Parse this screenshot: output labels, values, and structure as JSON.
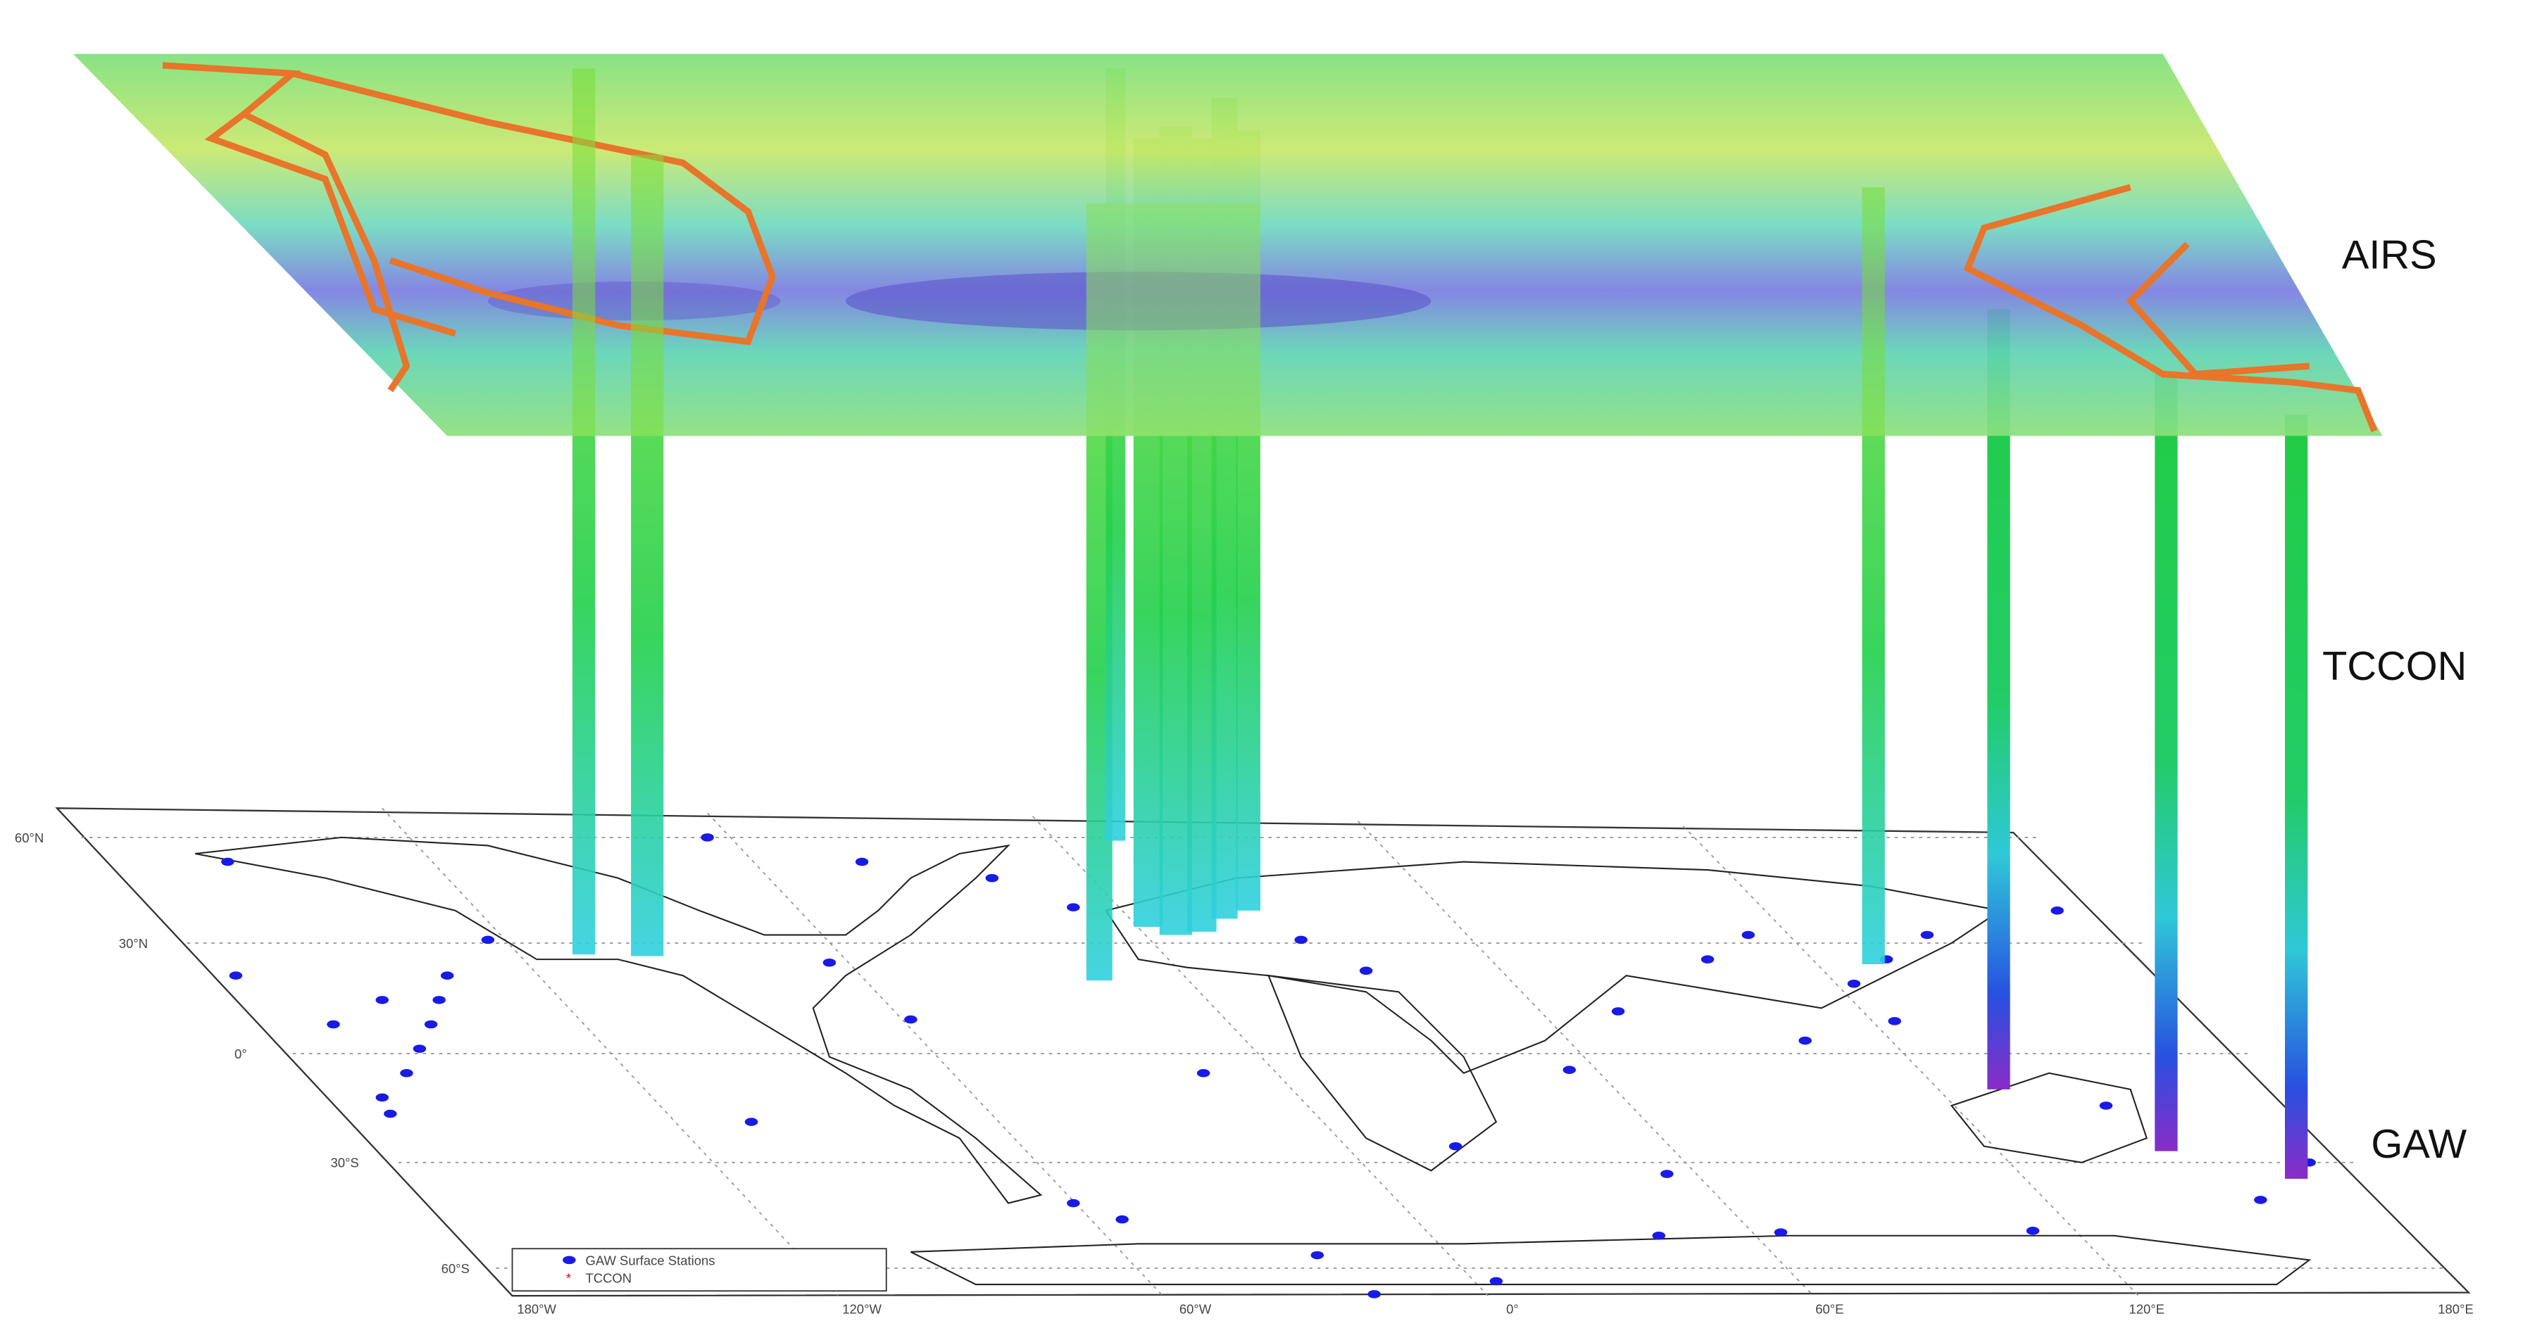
{
  "labels": {
    "airs": "AIRS",
    "tccon": "TCCON",
    "gaw": "GAW"
  },
  "legend": {
    "items": [
      "GAW Surface Stations",
      "TCCON"
    ]
  },
  "map": {
    "lat_labels": [
      "60°N",
      "30°N",
      "0°",
      "30°S",
      "60°S"
    ],
    "lon_labels": [
      "180°W",
      "120°W",
      "60°W",
      "0°",
      "60°E",
      "120°E",
      "180°E"
    ]
  }
}
